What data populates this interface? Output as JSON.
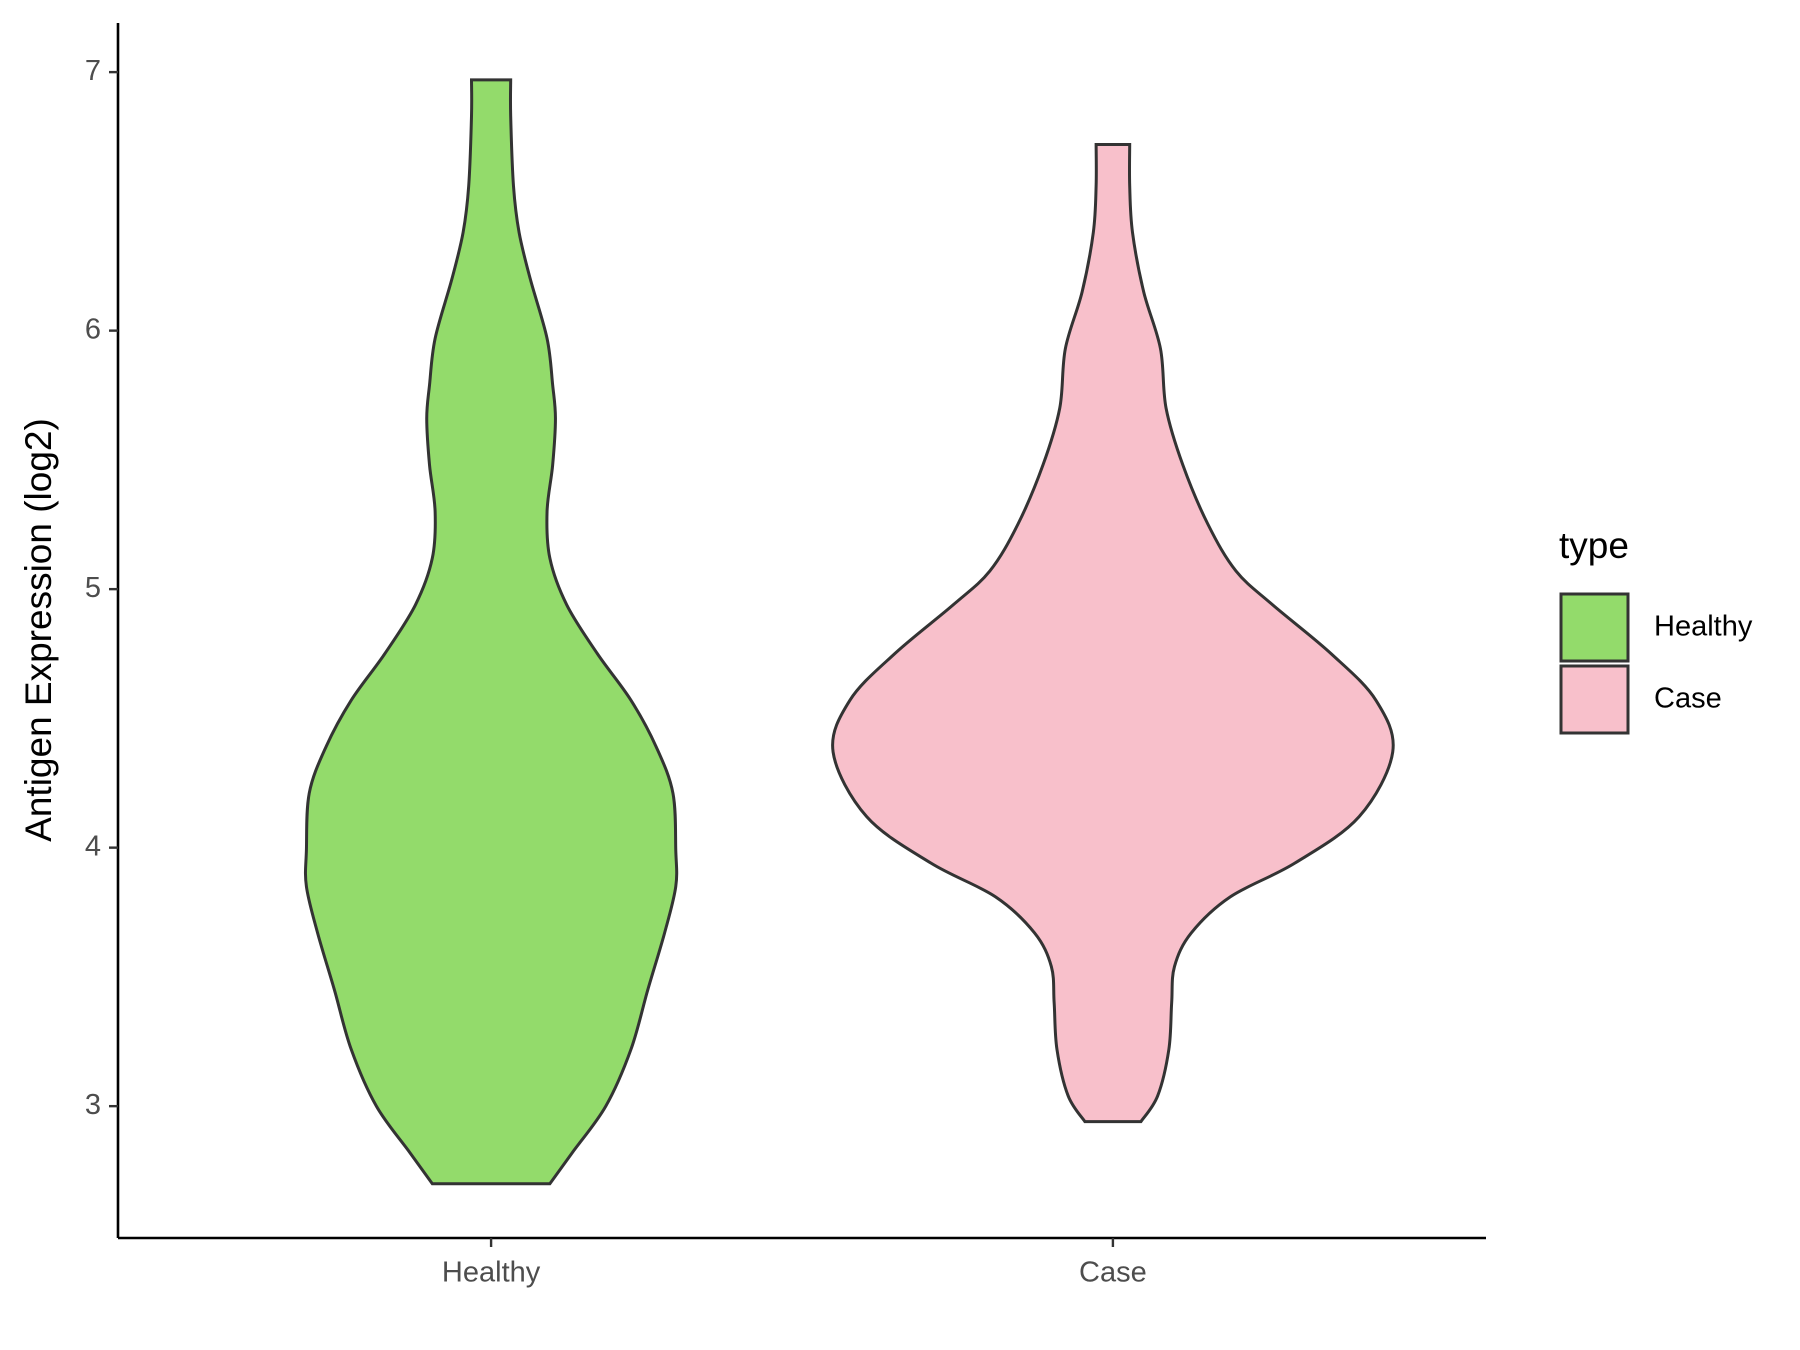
{
  "chart_data": {
    "type": "violin",
    "y_label": "Antigen Expression (log2)",
    "categories": [
      "Healthy",
      "Case"
    ],
    "legend_title": "type",
    "legend": "right",
    "series": [
      {
        "name": "Healthy",
        "color": "#93db6b",
        "y": [
          2.7,
          2.82,
          3.0,
          3.22,
          3.45,
          3.67,
          3.85,
          3.99,
          4.21,
          4.39,
          4.57,
          4.75,
          4.94,
          5.12,
          5.3,
          5.48,
          5.66,
          5.79,
          5.97,
          6.2,
          6.38,
          6.56,
          6.83,
          6.97
        ],
        "width": [
          0.21,
          0.29,
          0.41,
          0.5,
          0.56,
          0.62,
          0.66,
          0.66,
          0.65,
          0.59,
          0.5,
          0.38,
          0.27,
          0.21,
          0.2,
          0.22,
          0.23,
          0.22,
          0.2,
          0.14,
          0.1,
          0.08,
          0.07,
          0.07
        ]
      },
      {
        "name": "Case",
        "color": "#f8c0cb",
        "y": [
          2.94,
          3.04,
          3.22,
          3.4,
          3.54,
          3.67,
          3.81,
          3.94,
          4.12,
          4.37,
          4.57,
          4.75,
          4.94,
          5.07,
          5.25,
          5.48,
          5.7,
          5.93,
          6.15,
          6.38,
          6.56,
          6.72
        ],
        "width": [
          0.1,
          0.16,
          0.2,
          0.21,
          0.22,
          0.28,
          0.42,
          0.65,
          0.88,
          1.0,
          0.94,
          0.78,
          0.57,
          0.44,
          0.34,
          0.25,
          0.19,
          0.17,
          0.11,
          0.07,
          0.06,
          0.06
        ]
      }
    ],
    "ylim": [
      2.49,
      7.19
    ],
    "yticks": [
      3,
      4,
      5,
      6,
      7
    ]
  }
}
